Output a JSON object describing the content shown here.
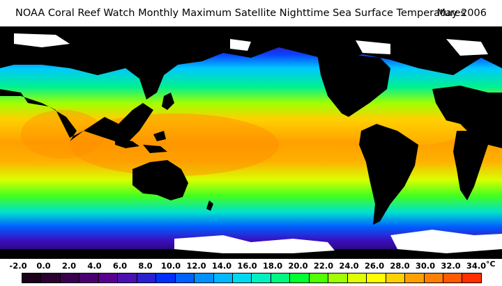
{
  "header": {
    "title": "NOAA Coral Reef Watch Monthly Maximum Satellite Nighttime Sea Surface Temperatures",
    "date": "May 2006"
  },
  "legend": {
    "unit": "°C",
    "ticks": [
      "-2.0",
      "0.0",
      "2.0",
      "4.0",
      "6.0",
      "8.0",
      "10.0",
      "12.0",
      "14.0",
      "16.0",
      "18.0",
      "20.0",
      "22.0",
      "24.0",
      "26.0",
      "28.0",
      "30.0",
      "32.0",
      "34.0"
    ],
    "colors": [
      "#1a001a",
      "#2a0030",
      "#3a0050",
      "#4a0070",
      "#5a0090",
      "#4a10b0",
      "#2a20d0",
      "#0030ff",
      "#0060ff",
      "#0090ff",
      "#00b8ff",
      "#00d8f0",
      "#00f0c0",
      "#00f880",
      "#00ff30",
      "#50ff00",
      "#a0ff00",
      "#e0ff00",
      "#ffff00",
      "#ffd000",
      "#ffa000",
      "#ff8000",
      "#ff5a00",
      "#ff3000"
    ]
  }
}
